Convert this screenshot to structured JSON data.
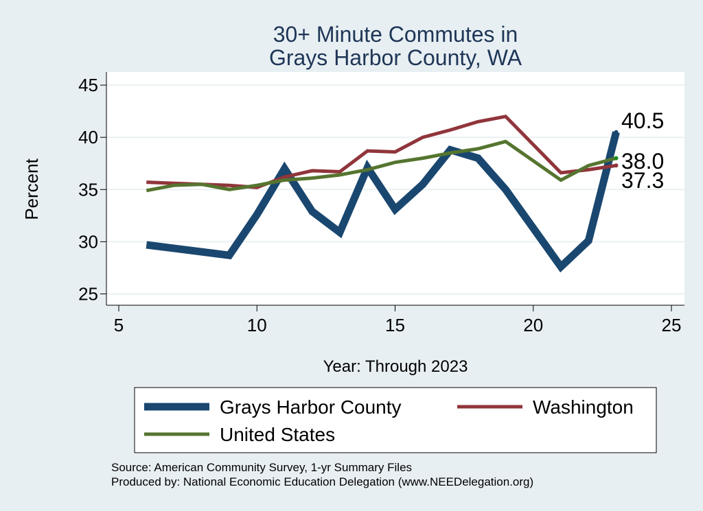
{
  "chart_data": {
    "type": "line",
    "title": [
      "30+ Minute Commutes in",
      "Grays Harbor County, WA"
    ],
    "xlabel": "Year: Through 2023",
    "ylabel": "Percent",
    "xlim": [
      5,
      25
    ],
    "ylim": [
      24.5,
      45.5
    ],
    "xticks": [
      5,
      10,
      15,
      20,
      25
    ],
    "yticks": [
      25,
      30,
      35,
      40,
      45
    ],
    "grid": true,
    "legend_position": "bottom",
    "series": [
      {
        "name": "Grays Harbor County",
        "color": "#1a476f",
        "x": [
          6,
          9,
          10,
          11,
          12,
          13,
          14,
          15,
          16,
          17,
          18,
          19,
          21,
          22,
          23
        ],
        "y": [
          29.7,
          28.7,
          32.6,
          37.0,
          32.9,
          30.9,
          37.1,
          33.1,
          35.5,
          38.8,
          38.0,
          35.0,
          27.6,
          30.1,
          40.5
        ]
      },
      {
        "name": "Washington",
        "color": "#90353b",
        "x": [
          6,
          7,
          8,
          9,
          10,
          11,
          12,
          13,
          14,
          15,
          16,
          17,
          18,
          19,
          21,
          22,
          23
        ],
        "y": [
          35.7,
          35.6,
          35.5,
          35.4,
          35.2,
          36.2,
          36.8,
          36.7,
          38.7,
          38.6,
          40.0,
          40.7,
          41.5,
          42.0,
          36.6,
          36.9,
          37.3
        ]
      },
      {
        "name": "United States",
        "color": "#55752f",
        "x": [
          6,
          7,
          8,
          9,
          10,
          11,
          12,
          13,
          14,
          15,
          16,
          17,
          18,
          19,
          21,
          22,
          23
        ],
        "y": [
          34.9,
          35.4,
          35.5,
          35.0,
          35.4,
          35.9,
          36.1,
          36.4,
          36.9,
          37.6,
          38.0,
          38.5,
          38.9,
          39.6,
          35.9,
          37.3,
          38.0
        ]
      }
    ],
    "end_labels": [
      {
        "series": "Grays Harbor County",
        "text": "40.5",
        "y": 40.5
      },
      {
        "series": "United States",
        "text": "38.0",
        "y": 38.0
      },
      {
        "series": "Washington",
        "text": "37.3",
        "y": 37.3
      }
    ],
    "source_lines": [
      "Source: American Community Survey, 1-yr Summary Files",
      "Produced by: National Economic Education Delegation (www.NEEDelegation.org)"
    ]
  }
}
